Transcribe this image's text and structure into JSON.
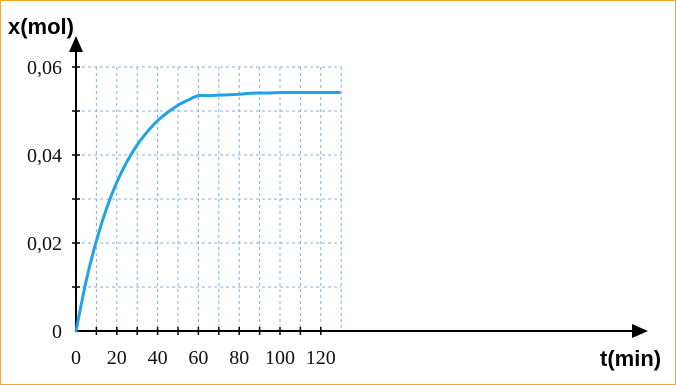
{
  "chart_data": {
    "type": "line",
    "title": "",
    "xlabel": "t(min)",
    "ylabel": "x(mol)",
    "xlim": [
      0,
      130
    ],
    "ylim": [
      0,
      0.06
    ],
    "grid": true,
    "x_ticks": [
      0,
      20,
      40,
      60,
      80,
      100,
      120
    ],
    "x_tick_labels": [
      "0",
      "20",
      "40",
      "60",
      "80",
      "100",
      "120"
    ],
    "y_ticks": [
      0,
      0.02,
      0.04,
      0.06
    ],
    "y_tick_labels": [
      "0",
      "0,02",
      "0,04",
      "0,06"
    ],
    "series": [
      {
        "color": "#1fa3e8",
        "x": [
          0,
          5,
          10,
          15,
          20,
          25,
          30,
          35,
          40,
          45,
          50,
          55,
          60,
          65,
          70,
          75,
          80,
          85,
          90,
          95,
          100,
          105,
          110,
          115,
          120,
          125,
          129
        ],
        "y": [
          0,
          0.0114,
          0.0205,
          0.0279,
          0.0338,
          0.0385,
          0.0423,
          0.0453,
          0.0478,
          0.0497,
          0.0513,
          0.0525,
          0.0535,
          0.0535,
          0.0536,
          0.0537,
          0.0538,
          0.054,
          0.0541,
          0.0541,
          0.0542,
          0.0542,
          0.0542,
          0.0542,
          0.0542,
          0.0542,
          0.0542
        ]
      }
    ]
  }
}
